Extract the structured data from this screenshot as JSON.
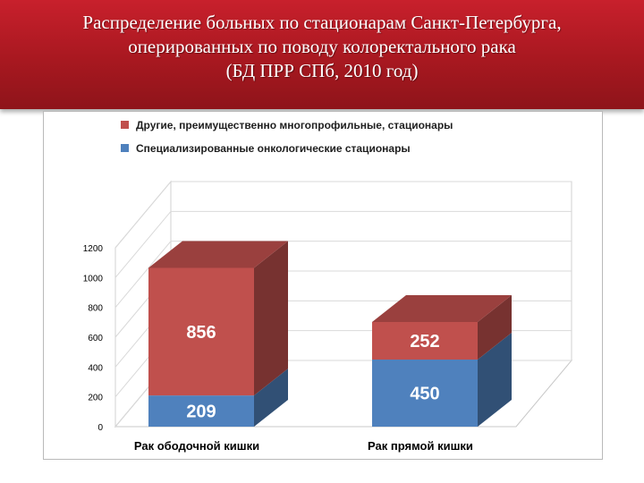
{
  "slide": {
    "title": "Распределение больных по стационарам Санкт-Петербурга,\nоперированных по поводу колоректального рака\n(БД ПРР СПб, 2010 год)"
  },
  "chart_data": {
    "type": "bar",
    "stacked": true,
    "three_d": true,
    "categories": [
      "Рак ободочной кишки",
      "Рак прямой кишки"
    ],
    "series": [
      {
        "name": "Специализированные онкологические стационары",
        "values": [
          209,
          450
        ],
        "color": "#4f81bd"
      },
      {
        "name": "Другие, преимущественно многопрофильные, стационары",
        "values": [
          856,
          252
        ],
        "color": "#c0504d"
      }
    ],
    "yticks": [
      "0",
      "200",
      "400",
      "600",
      "800",
      "1000",
      "1200"
    ],
    "ylim": [
      0,
      1200
    ],
    "grid": true,
    "legend_position": "top-left"
  }
}
